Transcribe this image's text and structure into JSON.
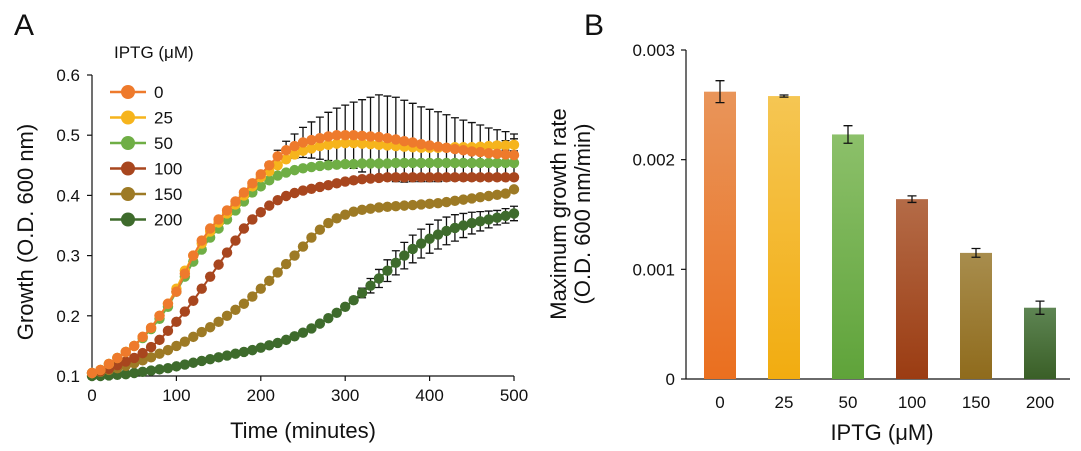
{
  "chart_data": [
    {
      "panel": "A",
      "type": "line",
      "xlabel": "Time (minutes)",
      "ylabel": "Growth (O.D. 600 nm)",
      "xlim": [
        0,
        500
      ],
      "ylim": [
        0.1,
        0.6
      ],
      "xticks": [
        "0",
        "100",
        "200",
        "300",
        "400",
        "500"
      ],
      "yticks": [
        "0.1",
        "0.2",
        "0.3",
        "0.4",
        "0.5",
        "0.6"
      ],
      "legend_title": "IPTG (μM)",
      "legend_position": "top-left",
      "x": [
        0,
        10,
        20,
        30,
        40,
        50,
        60,
        70,
        80,
        90,
        100,
        110,
        120,
        130,
        140,
        150,
        160,
        170,
        180,
        190,
        200,
        210,
        220,
        230,
        240,
        250,
        260,
        270,
        280,
        290,
        300,
        310,
        320,
        330,
        340,
        350,
        360,
        370,
        380,
        390,
        400,
        410,
        420,
        430,
        440,
        450,
        460,
        470,
        480,
        490,
        500
      ],
      "series": [
        {
          "name": "0",
          "color": "#ee7a2c",
          "values": [
            0.105,
            0.11,
            0.12,
            0.13,
            0.14,
            0.15,
            0.165,
            0.18,
            0.2,
            0.22,
            0.24,
            0.27,
            0.3,
            0.325,
            0.345,
            0.36,
            0.375,
            0.39,
            0.405,
            0.42,
            0.435,
            0.45,
            0.465,
            0.475,
            0.482,
            0.488,
            0.492,
            0.495,
            0.498,
            0.5,
            0.5,
            0.5,
            0.499,
            0.498,
            0.497,
            0.495,
            0.493,
            0.49,
            0.488,
            0.485,
            0.483,
            0.481,
            0.479,
            0.477,
            0.475,
            0.473,
            0.472,
            0.47,
            0.469,
            0.468,
            0.467
          ],
          "err": [
            0,
            0,
            0,
            0,
            0,
            0,
            0,
            0,
            0,
            0,
            0,
            0,
            0,
            0,
            0,
            0,
            0,
            0,
            0,
            0,
            0,
            0.005,
            0.01,
            0.015,
            0.02,
            0.025,
            0.03,
            0.035,
            0.04,
            0.045,
            0.05,
            0.055,
            0.06,
            0.065,
            0.07,
            0.07,
            0.07,
            0.068,
            0.065,
            0.062,
            0.06,
            0.058,
            0.055,
            0.052,
            0.05,
            0.048,
            0.045,
            0.042,
            0.04,
            0.038,
            0.035
          ]
        },
        {
          "name": "25",
          "color": "#f6b41c",
          "values": [
            0.105,
            0.11,
            0.12,
            0.13,
            0.14,
            0.15,
            0.165,
            0.18,
            0.2,
            0.22,
            0.245,
            0.275,
            0.3,
            0.32,
            0.34,
            0.355,
            0.37,
            0.385,
            0.4,
            0.415,
            0.43,
            0.44,
            0.45,
            0.46,
            0.468,
            0.474,
            0.478,
            0.482,
            0.484,
            0.486,
            0.487,
            0.487,
            0.486,
            0.485,
            0.484,
            0.483,
            0.482,
            0.481,
            0.48,
            0.479,
            0.479,
            0.479,
            0.479,
            0.48,
            0.48,
            0.48,
            0.481,
            0.482,
            0.483,
            0.483,
            0.484
          ],
          "err": [
            0,
            0,
            0,
            0,
            0,
            0,
            0,
            0,
            0,
            0,
            0,
            0,
            0,
            0,
            0,
            0,
            0,
            0,
            0,
            0,
            0,
            0,
            0,
            0,
            0,
            0,
            0,
            0,
            0,
            0,
            0,
            0,
            0,
            0,
            0,
            0,
            0,
            0,
            0,
            0,
            0,
            0,
            0,
            0,
            0,
            0,
            0,
            0,
            0.005,
            0.008,
            0.01
          ]
        },
        {
          "name": "50",
          "color": "#6fae45",
          "values": [
            0.105,
            0.11,
            0.12,
            0.13,
            0.14,
            0.15,
            0.163,
            0.178,
            0.195,
            0.215,
            0.24,
            0.265,
            0.29,
            0.31,
            0.33,
            0.345,
            0.36,
            0.375,
            0.39,
            0.405,
            0.415,
            0.425,
            0.433,
            0.438,
            0.442,
            0.445,
            0.447,
            0.449,
            0.45,
            0.451,
            0.452,
            0.452,
            0.453,
            0.453,
            0.453,
            0.453,
            0.454,
            0.454,
            0.454,
            0.454,
            0.454,
            0.454,
            0.454,
            0.454,
            0.454,
            0.454,
            0.454,
            0.454,
            0.454,
            0.454,
            0.454
          ],
          "err": [
            0,
            0,
            0,
            0,
            0,
            0,
            0,
            0,
            0,
            0,
            0,
            0,
            0,
            0,
            0,
            0,
            0,
            0,
            0,
            0,
            0,
            0,
            0,
            0,
            0,
            0,
            0,
            0,
            0,
            0,
            0,
            0,
            0,
            0,
            0,
            0,
            0,
            0,
            0,
            0,
            0,
            0,
            0,
            0,
            0,
            0,
            0,
            0,
            0,
            0,
            0
          ]
        },
        {
          "name": "100",
          "color": "#a8461e",
          "values": [
            0.105,
            0.108,
            0.112,
            0.118,
            0.124,
            0.13,
            0.138,
            0.148,
            0.16,
            0.175,
            0.19,
            0.207,
            0.225,
            0.245,
            0.265,
            0.285,
            0.305,
            0.325,
            0.345,
            0.36,
            0.372,
            0.383,
            0.392,
            0.399,
            0.404,
            0.408,
            0.411,
            0.414,
            0.417,
            0.42,
            0.423,
            0.425,
            0.427,
            0.428,
            0.429,
            0.43,
            0.43,
            0.43,
            0.43,
            0.43,
            0.43,
            0.43,
            0.43,
            0.43,
            0.43,
            0.43,
            0.43,
            0.43,
            0.43,
            0.43,
            0.43
          ],
          "err": [
            0,
            0,
            0,
            0,
            0,
            0,
            0,
            0,
            0,
            0,
            0,
            0,
            0,
            0,
            0,
            0,
            0,
            0,
            0,
            0,
            0,
            0,
            0,
            0,
            0,
            0,
            0,
            0,
            0,
            0,
            0,
            0,
            0,
            0,
            0,
            0,
            0,
            0,
            0,
            0,
            0,
            0,
            0,
            0,
            0,
            0,
            0,
            0,
            0,
            0,
            0
          ]
        },
        {
          "name": "150",
          "color": "#9d7a25",
          "values": [
            0.105,
            0.107,
            0.11,
            0.113,
            0.117,
            0.121,
            0.126,
            0.131,
            0.137,
            0.143,
            0.15,
            0.157,
            0.165,
            0.173,
            0.181,
            0.19,
            0.2,
            0.21,
            0.22,
            0.232,
            0.245,
            0.258,
            0.272,
            0.286,
            0.3,
            0.315,
            0.33,
            0.343,
            0.354,
            0.362,
            0.368,
            0.373,
            0.376,
            0.378,
            0.38,
            0.381,
            0.382,
            0.383,
            0.384,
            0.385,
            0.386,
            0.387,
            0.389,
            0.391,
            0.393,
            0.395,
            0.397,
            0.399,
            0.401,
            0.403,
            0.41
          ],
          "err": [
            0,
            0,
            0,
            0,
            0,
            0,
            0,
            0,
            0,
            0,
            0,
            0,
            0,
            0,
            0,
            0,
            0,
            0,
            0,
            0,
            0,
            0,
            0,
            0,
            0,
            0,
            0,
            0,
            0,
            0,
            0,
            0,
            0,
            0,
            0,
            0,
            0,
            0,
            0,
            0,
            0,
            0,
            0,
            0,
            0,
            0,
            0,
            0,
            0,
            0,
            0
          ]
        },
        {
          "name": "200",
          "color": "#3e6b2c",
          "values": [
            0.1,
            0.1,
            0.101,
            0.102,
            0.103,
            0.105,
            0.107,
            0.109,
            0.111,
            0.113,
            0.116,
            0.119,
            0.122,
            0.125,
            0.128,
            0.131,
            0.134,
            0.137,
            0.14,
            0.143,
            0.147,
            0.151,
            0.155,
            0.16,
            0.166,
            0.172,
            0.179,
            0.187,
            0.196,
            0.205,
            0.215,
            0.226,
            0.238,
            0.25,
            0.262,
            0.275,
            0.288,
            0.3,
            0.311,
            0.32,
            0.328,
            0.335,
            0.341,
            0.346,
            0.35,
            0.354,
            0.357,
            0.36,
            0.363,
            0.366,
            0.37
          ],
          "err": [
            0,
            0,
            0,
            0,
            0,
            0,
            0,
            0,
            0,
            0,
            0,
            0,
            0,
            0,
            0,
            0,
            0,
            0,
            0,
            0,
            0,
            0,
            0,
            0,
            0,
            0,
            0,
            0,
            0,
            0,
            0,
            0.005,
            0.008,
            0.012,
            0.015,
            0.018,
            0.02,
            0.022,
            0.023,
            0.024,
            0.024,
            0.024,
            0.023,
            0.022,
            0.02,
            0.018,
            0.016,
            0.014,
            0.012,
            0.012,
            0.012
          ]
        }
      ]
    },
    {
      "panel": "B",
      "type": "bar",
      "xlabel": "IPTG (μM)",
      "ylabel_line1": "Maximum growth rate",
      "ylabel_line2": "(O.D. 600 nm/min)",
      "ylim": [
        0,
        0.003
      ],
      "yticks": [
        "0",
        "0.001",
        "0.002",
        "0.003"
      ],
      "categories": [
        "0",
        "25",
        "50",
        "100",
        "150",
        "200"
      ],
      "values": [
        0.00262,
        0.00258,
        0.00223,
        0.00164,
        0.00115,
        0.00065
      ],
      "errors": [
        0.0001,
        1e-05,
        8e-05,
        3e-05,
        4e-05,
        6e-05
      ],
      "colors_top": [
        "#e9955a",
        "#f5c653",
        "#8cc06a",
        "#b46b47",
        "#a88d4d",
        "#5e8553"
      ],
      "colors_bottom": [
        "#ea6f1f",
        "#f2ac10",
        "#5fa33a",
        "#9b3c12",
        "#8f6b1c",
        "#3a5f27"
      ]
    }
  ]
}
